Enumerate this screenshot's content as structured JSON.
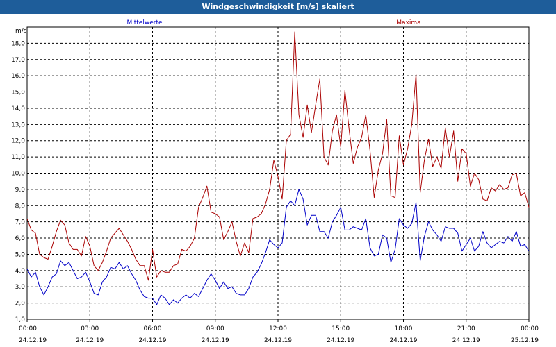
{
  "window": {
    "title": "Windgeschwindigkeit [m/s] skaliert"
  },
  "colors": {
    "titlebar": "#1e5d9a",
    "mean": "#0000c8",
    "max": "#aa0000",
    "grid": "#000000"
  },
  "chart_data": {
    "type": "line",
    "title": "Windgeschwindigkeit [m/s] skaliert",
    "ylabel": "m/s",
    "xlabel": "",
    "ylim": [
      1.0,
      19.0
    ],
    "yticks": [
      "1,0",
      "2,0",
      "3,0",
      "4,0",
      "5,0",
      "6,0",
      "7,0",
      "8,0",
      "9,0",
      "10,0",
      "11,0",
      "12,0",
      "13,0",
      "14,0",
      "15,0",
      "16,0",
      "17,0",
      "18,0"
    ],
    "xlim": [
      0,
      24
    ],
    "xticks": [
      {
        "time": "00:00",
        "date": "24.12.19"
      },
      {
        "time": "03:00",
        "date": "24.12.19"
      },
      {
        "time": "06:00",
        "date": "24.12.19"
      },
      {
        "time": "09:00",
        "date": "24.12.19"
      },
      {
        "time": "12:00",
        "date": "24.12.19"
      },
      {
        "time": "15:00",
        "date": "24.12.19"
      },
      {
        "time": "18:00",
        "date": "24.12.19"
      },
      {
        "time": "21:00",
        "date": "24.12.19"
      },
      {
        "time": "00:00",
        "date": "25.12.19"
      }
    ],
    "grid": true,
    "legend": "top",
    "series": [
      {
        "name": "Mittelwerte",
        "color": "#0000c8",
        "points": [
          [
            0.0,
            4.1
          ],
          [
            0.2,
            3.6
          ],
          [
            0.4,
            3.9
          ],
          [
            0.6,
            3.0
          ],
          [
            0.8,
            2.5
          ],
          [
            1.0,
            3.0
          ],
          [
            1.2,
            3.6
          ],
          [
            1.4,
            3.8
          ],
          [
            1.6,
            4.6
          ],
          [
            1.8,
            4.3
          ],
          [
            2.0,
            4.5
          ],
          [
            2.2,
            4.0
          ],
          [
            2.4,
            3.5
          ],
          [
            2.6,
            3.6
          ],
          [
            2.8,
            3.9
          ],
          [
            3.0,
            3.3
          ],
          [
            3.2,
            2.6
          ],
          [
            3.4,
            2.5
          ],
          [
            3.6,
            3.3
          ],
          [
            3.8,
            3.6
          ],
          [
            4.0,
            4.2
          ],
          [
            4.2,
            4.1
          ],
          [
            4.4,
            4.5
          ],
          [
            4.6,
            4.1
          ],
          [
            4.8,
            4.3
          ],
          [
            5.0,
            3.8
          ],
          [
            5.2,
            3.4
          ],
          [
            5.4,
            2.8
          ],
          [
            5.6,
            2.4
          ],
          [
            5.8,
            2.3
          ],
          [
            6.0,
            2.3
          ],
          [
            6.2,
            1.9
          ],
          [
            6.4,
            2.5
          ],
          [
            6.6,
            2.3
          ],
          [
            6.8,
            1.9
          ],
          [
            7.0,
            2.2
          ],
          [
            7.2,
            2.0
          ],
          [
            7.4,
            2.3
          ],
          [
            7.6,
            2.5
          ],
          [
            7.8,
            2.3
          ],
          [
            8.0,
            2.6
          ],
          [
            8.2,
            2.4
          ],
          [
            8.4,
            2.9
          ],
          [
            8.6,
            3.4
          ],
          [
            8.8,
            3.8
          ],
          [
            9.0,
            3.4
          ],
          [
            9.2,
            2.9
          ],
          [
            9.4,
            3.3
          ],
          [
            9.6,
            2.9
          ],
          [
            9.8,
            3.0
          ],
          [
            10.0,
            2.6
          ],
          [
            10.2,
            2.5
          ],
          [
            10.4,
            2.5
          ],
          [
            10.6,
            2.9
          ],
          [
            10.8,
            3.6
          ],
          [
            11.0,
            3.9
          ],
          [
            11.2,
            4.4
          ],
          [
            11.4,
            5.1
          ],
          [
            11.6,
            5.9
          ],
          [
            11.8,
            5.6
          ],
          [
            12.0,
            5.4
          ],
          [
            12.2,
            5.7
          ],
          [
            12.4,
            7.9
          ],
          [
            12.6,
            8.3
          ],
          [
            12.8,
            8.0
          ],
          [
            13.0,
            9.0
          ],
          [
            13.2,
            8.4
          ],
          [
            13.4,
            6.8
          ],
          [
            13.6,
            7.4
          ],
          [
            13.8,
            7.4
          ],
          [
            14.0,
            6.4
          ],
          [
            14.2,
            6.4
          ],
          [
            14.4,
            6.0
          ],
          [
            14.6,
            7.0
          ],
          [
            14.8,
            7.4
          ],
          [
            15.0,
            7.9
          ],
          [
            15.2,
            6.5
          ],
          [
            15.4,
            6.5
          ],
          [
            15.6,
            6.7
          ],
          [
            15.8,
            6.6
          ],
          [
            16.0,
            6.5
          ],
          [
            16.2,
            7.2
          ],
          [
            16.4,
            5.4
          ],
          [
            16.6,
            4.9
          ],
          [
            16.8,
            5.0
          ],
          [
            17.0,
            6.2
          ],
          [
            17.2,
            6.0
          ],
          [
            17.4,
            4.5
          ],
          [
            17.6,
            5.3
          ],
          [
            17.8,
            7.2
          ],
          [
            18.0,
            6.8
          ],
          [
            18.2,
            6.6
          ],
          [
            18.4,
            6.9
          ],
          [
            18.6,
            8.2
          ],
          [
            18.8,
            4.6
          ],
          [
            19.0,
            6.1
          ],
          [
            19.2,
            7.0
          ],
          [
            19.4,
            6.5
          ],
          [
            19.6,
            6.2
          ],
          [
            19.8,
            5.8
          ],
          [
            20.0,
            6.7
          ],
          [
            20.2,
            6.6
          ],
          [
            20.4,
            6.6
          ],
          [
            20.6,
            6.3
          ],
          [
            20.8,
            5.2
          ],
          [
            21.0,
            5.6
          ],
          [
            21.2,
            6.0
          ],
          [
            21.4,
            5.2
          ],
          [
            21.6,
            5.5
          ],
          [
            21.8,
            6.4
          ],
          [
            22.0,
            5.7
          ],
          [
            22.2,
            5.4
          ],
          [
            22.4,
            5.6
          ],
          [
            22.6,
            5.8
          ],
          [
            22.8,
            5.7
          ],
          [
            23.0,
            6.1
          ],
          [
            23.2,
            5.8
          ],
          [
            23.4,
            6.4
          ],
          [
            23.6,
            5.5
          ],
          [
            23.8,
            5.6
          ],
          [
            24.0,
            5.2
          ]
        ]
      },
      {
        "name": "Maxima",
        "color": "#aa0000",
        "points": [
          [
            0.0,
            7.2
          ],
          [
            0.2,
            6.5
          ],
          [
            0.4,
            6.3
          ],
          [
            0.6,
            5.0
          ],
          [
            0.8,
            4.8
          ],
          [
            1.0,
            4.7
          ],
          [
            1.2,
            5.5
          ],
          [
            1.4,
            6.4
          ],
          [
            1.6,
            7.1
          ],
          [
            1.8,
            6.8
          ],
          [
            2.0,
            5.7
          ],
          [
            2.2,
            5.3
          ],
          [
            2.4,
            5.3
          ],
          [
            2.6,
            4.9
          ],
          [
            2.8,
            6.1
          ],
          [
            3.0,
            5.5
          ],
          [
            3.2,
            4.3
          ],
          [
            3.4,
            4.0
          ],
          [
            3.6,
            4.5
          ],
          [
            3.8,
            5.2
          ],
          [
            4.0,
            6.0
          ],
          [
            4.2,
            6.3
          ],
          [
            4.4,
            6.6
          ],
          [
            4.6,
            6.2
          ],
          [
            4.8,
            5.8
          ],
          [
            5.0,
            5.3
          ],
          [
            5.2,
            4.7
          ],
          [
            5.4,
            4.3
          ],
          [
            5.6,
            4.3
          ],
          [
            5.8,
            3.4
          ],
          [
            6.0,
            5.3
          ],
          [
            6.2,
            3.6
          ],
          [
            6.4,
            4.0
          ],
          [
            6.6,
            3.9
          ],
          [
            6.8,
            3.9
          ],
          [
            7.0,
            4.3
          ],
          [
            7.2,
            4.4
          ],
          [
            7.4,
            5.3
          ],
          [
            7.6,
            5.2
          ],
          [
            7.8,
            5.5
          ],
          [
            8.0,
            6.0
          ],
          [
            8.2,
            7.9
          ],
          [
            8.4,
            8.5
          ],
          [
            8.6,
            9.2
          ],
          [
            8.8,
            7.6
          ],
          [
            9.0,
            7.5
          ],
          [
            9.2,
            7.3
          ],
          [
            9.4,
            5.9
          ],
          [
            9.6,
            6.4
          ],
          [
            9.8,
            7.0
          ],
          [
            10.0,
            5.8
          ],
          [
            10.2,
            4.9
          ],
          [
            10.4,
            5.7
          ],
          [
            10.6,
            5.1
          ],
          [
            10.8,
            7.2
          ],
          [
            11.0,
            7.3
          ],
          [
            11.2,
            7.5
          ],
          [
            11.4,
            8.1
          ],
          [
            11.6,
            9.0
          ],
          [
            11.8,
            10.8
          ],
          [
            12.0,
            9.8
          ],
          [
            12.2,
            8.4
          ],
          [
            12.4,
            12.0
          ],
          [
            12.6,
            12.4
          ],
          [
            12.8,
            18.7
          ],
          [
            13.0,
            13.6
          ],
          [
            13.2,
            12.2
          ],
          [
            13.4,
            14.2
          ],
          [
            13.6,
            12.5
          ],
          [
            13.8,
            14.2
          ],
          [
            14.0,
            15.8
          ],
          [
            14.2,
            11.0
          ],
          [
            14.4,
            10.5
          ],
          [
            14.6,
            12.6
          ],
          [
            14.8,
            13.6
          ],
          [
            15.0,
            11.6
          ],
          [
            15.2,
            15.1
          ],
          [
            15.4,
            12.7
          ],
          [
            15.6,
            10.6
          ],
          [
            15.8,
            11.6
          ],
          [
            16.0,
            12.2
          ],
          [
            16.2,
            13.6
          ],
          [
            16.4,
            11.4
          ],
          [
            16.6,
            8.5
          ],
          [
            16.8,
            10.2
          ],
          [
            17.0,
            11.2
          ],
          [
            17.2,
            13.3
          ],
          [
            17.4,
            8.6
          ],
          [
            17.6,
            8.5
          ],
          [
            17.8,
            12.3
          ],
          [
            18.0,
            10.5
          ],
          [
            18.2,
            11.5
          ],
          [
            18.4,
            13.0
          ],
          [
            18.6,
            16.1
          ],
          [
            18.8,
            8.8
          ],
          [
            19.0,
            10.8
          ],
          [
            19.2,
            12.1
          ],
          [
            19.4,
            10.4
          ],
          [
            19.6,
            11.0
          ],
          [
            19.8,
            10.3
          ],
          [
            20.0,
            12.8
          ],
          [
            20.2,
            11.0
          ],
          [
            20.4,
            12.6
          ],
          [
            20.6,
            9.5
          ],
          [
            20.8,
            11.5
          ],
          [
            21.0,
            11.2
          ],
          [
            21.2,
            9.2
          ],
          [
            21.4,
            10.0
          ],
          [
            21.6,
            9.6
          ],
          [
            21.8,
            8.4
          ],
          [
            22.0,
            8.3
          ],
          [
            22.2,
            9.1
          ],
          [
            22.4,
            8.9
          ],
          [
            22.6,
            9.3
          ],
          [
            22.8,
            9.0
          ],
          [
            23.0,
            9.1
          ],
          [
            23.2,
            9.9
          ],
          [
            23.4,
            10.0
          ],
          [
            23.6,
            8.6
          ],
          [
            23.8,
            8.8
          ],
          [
            24.0,
            7.9
          ]
        ]
      }
    ]
  }
}
